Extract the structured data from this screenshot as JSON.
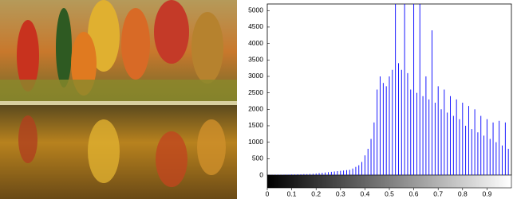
{
  "chart_data": {
    "type": "stem",
    "color": "#0000ff",
    "x": [
      0,
      0.0125,
      0.025,
      0.0375,
      0.05,
      0.0625,
      0.075,
      0.0875,
      0.1,
      0.1125,
      0.125,
      0.1375,
      0.15,
      0.1625,
      0.175,
      0.1875,
      0.2,
      0.2125,
      0.225,
      0.2375,
      0.25,
      0.2625,
      0.275,
      0.2875,
      0.3,
      0.3125,
      0.325,
      0.3375,
      0.35,
      0.3625,
      0.375,
      0.3875,
      0.4,
      0.4125,
      0.425,
      0.4375,
      0.45,
      0.4625,
      0.475,
      0.4875,
      0.5,
      0.5125,
      0.525,
      0.5375,
      0.55,
      0.5625,
      0.575,
      0.5875,
      0.6,
      0.6125,
      0.625,
      0.6375,
      0.65,
      0.6625,
      0.675,
      0.6875,
      0.7,
      0.7125,
      0.725,
      0.7375,
      0.75,
      0.7625,
      0.775,
      0.7875,
      0.8,
      0.8125,
      0.825,
      0.8375,
      0.85,
      0.8625,
      0.875,
      0.8875,
      0.9,
      0.9125,
      0.925,
      0.9375,
      0.95,
      0.9625,
      0.975,
      0.9875
    ],
    "values": [
      5,
      5,
      8,
      10,
      10,
      12,
      15,
      15,
      20,
      20,
      25,
      25,
      30,
      30,
      35,
      40,
      50,
      60,
      70,
      80,
      90,
      100,
      110,
      120,
      130,
      140,
      150,
      160,
      200,
      250,
      300,
      400,
      600,
      800,
      1100,
      1600,
      2600,
      3000,
      2800,
      2700,
      3000,
      3200,
      5200,
      3400,
      3200,
      5200,
      3100,
      2600,
      5200,
      2500,
      5200,
      2400,
      3000,
      2300,
      4400,
      2200,
      2700,
      2000,
      2600,
      1900,
      2400,
      1800,
      2300,
      1700,
      2200,
      1500,
      2100,
      1400,
      2000,
      1300,
      1800,
      1200,
      1700,
      1100,
      1600,
      1000,
      1650,
      900,
      1600,
      800
    ],
    "xlim": [
      0,
      1
    ],
    "ylim": [
      0,
      5200
    ],
    "xticks": [
      0,
      0.1,
      0.2,
      0.3,
      0.4,
      0.5,
      0.6,
      0.7,
      0.8,
      0.9
    ],
    "yticks": [
      0,
      500,
      1000,
      1500,
      2000,
      2500,
      3000,
      3500,
      4000,
      4500,
      5000
    ]
  }
}
